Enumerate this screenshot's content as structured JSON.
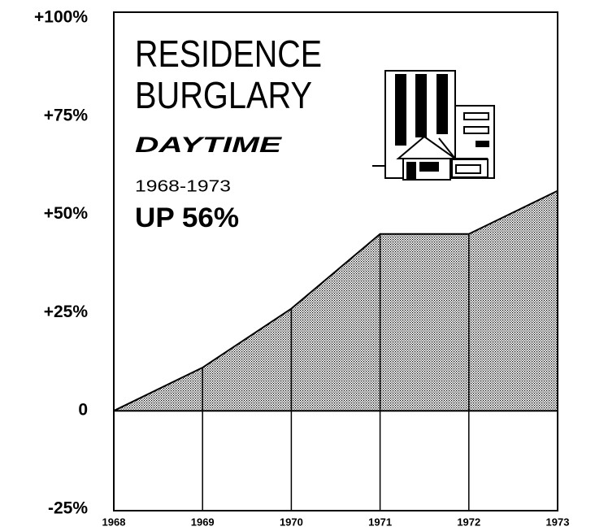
{
  "chart_data": {
    "type": "area",
    "title_lines": [
      "RESIDENCE",
      "BURGLARY"
    ],
    "subtitle": "DAYTIME",
    "period": "1968-1973",
    "annotation": "UP 56%",
    "x": [
      1968,
      1969,
      1970,
      1971,
      1972,
      1973
    ],
    "values": [
      0,
      11,
      26,
      45,
      45,
      56
    ],
    "color": "#000000",
    "xlim": [
      1968,
      1973
    ],
    "xticks": [
      1968,
      1969,
      1970,
      1971,
      1972,
      1973
    ],
    "ylim": [
      -25,
      100
    ],
    "yticks": [
      {
        "value": -25,
        "label": "-25%"
      },
      0,
      {
        "value": 25,
        "label": "+25%"
      },
      {
        "value": 50,
        "label": "+50%"
      },
      {
        "value": 75,
        "label": "+75%"
      },
      {
        "value": 100,
        "label": "+100%"
      }
    ]
  }
}
